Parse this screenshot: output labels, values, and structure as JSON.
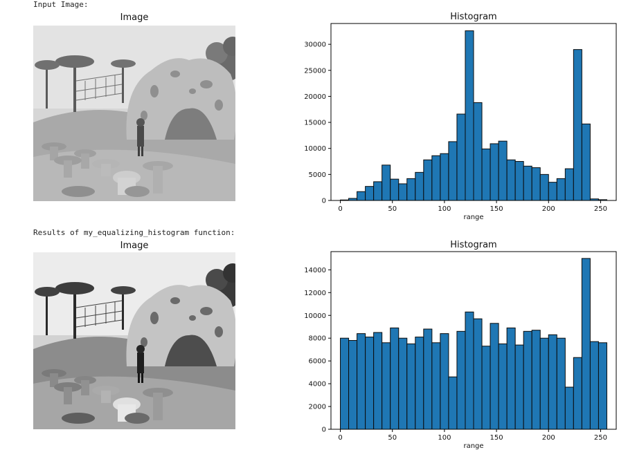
{
  "output": {
    "input_caption": "Input Image:",
    "result_caption": "Results of my_equalizing_histogram function:"
  },
  "panels": {
    "image_title": "Image",
    "histogram_title": "Histogram",
    "xlabel": "range"
  },
  "colors": {
    "bar_fill": "#1f77b4",
    "bar_edge": "#0b0b0b"
  },
  "chart_data": [
    {
      "type": "bar",
      "title": "Histogram",
      "xlabel": "range",
      "ylabel": "",
      "bin_start": 0,
      "bin_width": 8,
      "xlim": [
        -9,
        265
      ],
      "ylim": [
        0,
        34000
      ],
      "xticks": [
        0,
        50,
        100,
        150,
        200,
        250
      ],
      "yticks": [
        0,
        5000,
        10000,
        15000,
        20000,
        25000,
        30000
      ],
      "values": [
        100,
        400,
        1700,
        2700,
        3600,
        6800,
        4100,
        3200,
        4200,
        5400,
        7800,
        8600,
        9000,
        11300,
        16600,
        32600,
        18800,
        9900,
        10900,
        11400,
        7800,
        7500,
        6600,
        6300,
        5000,
        3500,
        4200,
        6100,
        29000,
        14700,
        300,
        150
      ],
      "grid": false
    },
    {
      "type": "bar",
      "title": "Histogram",
      "xlabel": "range",
      "ylabel": "",
      "bin_start": 0,
      "bin_width": 8,
      "xlim": [
        -9,
        265
      ],
      "ylim": [
        0,
        15600
      ],
      "xticks": [
        0,
        50,
        100,
        150,
        200,
        250
      ],
      "yticks": [
        0,
        2000,
        4000,
        6000,
        8000,
        10000,
        12000,
        14000
      ],
      "values": [
        8000,
        7800,
        8400,
        8100,
        8500,
        7600,
        8900,
        8000,
        7500,
        8100,
        8800,
        7600,
        8400,
        4600,
        8600,
        10300,
        9700,
        7300,
        9300,
        7500,
        8900,
        7400,
        8600,
        8700,
        8000,
        8300,
        8000,
        3700,
        6300,
        15000,
        7700,
        7600
      ],
      "grid": false
    }
  ]
}
